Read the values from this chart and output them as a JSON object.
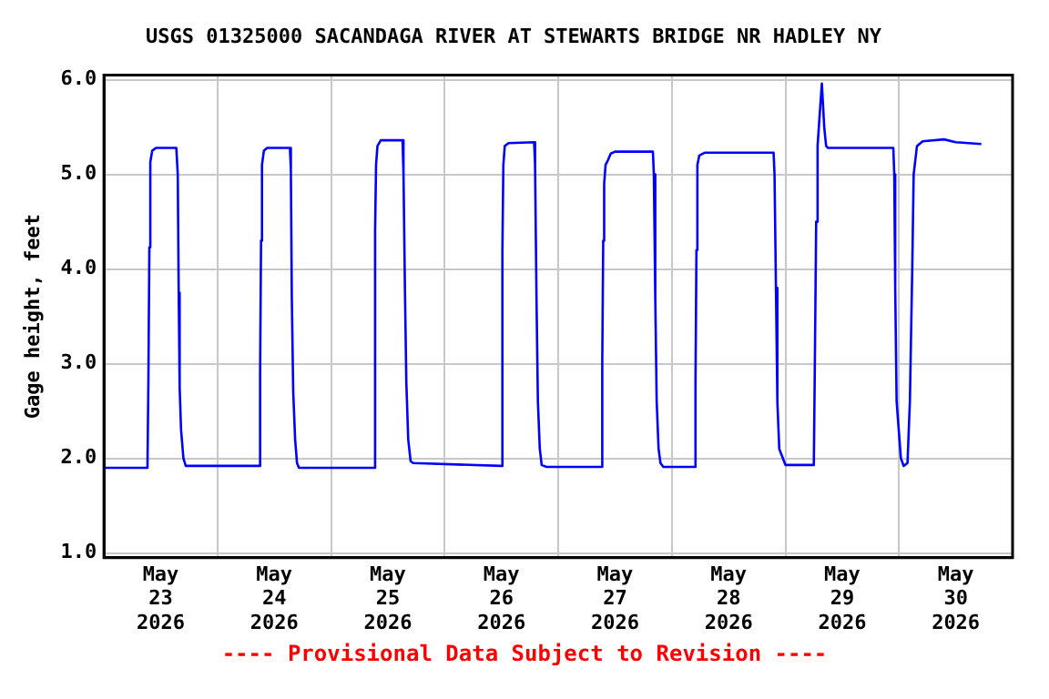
{
  "chart_data": {
    "type": "line",
    "title": "USGS 01325000 SACANDAGA RIVER AT STEWARTS BRIDGE NR HADLEY NY",
    "ylabel": "Gage height, feet",
    "annotations": [
      "---- Provisional Data Subject to Revision ----"
    ],
    "grid": true,
    "legend": false,
    "marker": "none",
    "line_style": "solid",
    "xlim": [
      "2026-05-23T00:00",
      "2026-05-31T00:00"
    ],
    "xticks": [
      {
        "value": "2026-05-23T00:00",
        "label": null
      },
      {
        "value": "2026-05-23T12:00",
        "label": "May\n23\n2026"
      },
      {
        "value": "2026-05-24T00:00",
        "label": null
      },
      {
        "value": "2026-05-24T12:00",
        "label": "May\n24\n2026"
      },
      {
        "value": "2026-05-25T00:00",
        "label": null
      },
      {
        "value": "2026-05-25T12:00",
        "label": "May\n25\n2026"
      },
      {
        "value": "2026-05-26T00:00",
        "label": null
      },
      {
        "value": "2026-05-26T12:00",
        "label": "May\n26\n2026"
      },
      {
        "value": "2026-05-27T00:00",
        "label": null
      },
      {
        "value": "2026-05-27T12:00",
        "label": "May\n27\n2026"
      },
      {
        "value": "2026-05-28T00:00",
        "label": null
      },
      {
        "value": "2026-05-28T12:00",
        "label": "May\n28\n2026"
      },
      {
        "value": "2026-05-29T00:00",
        "label": null
      },
      {
        "value": "2026-05-29T12:00",
        "label": "May\n29\n2026"
      },
      {
        "value": "2026-05-30T00:00",
        "label": null
      },
      {
        "value": "2026-05-30T12:00",
        "label": "May\n30\n2026"
      },
      {
        "value": "2026-05-31T00:00",
        "label": null
      }
    ],
    "ylim": [
      0.95,
      6.05
    ],
    "yticks": [
      {
        "value": 1,
        "label": "1.0"
      },
      {
        "value": 2,
        "label": "2.0"
      },
      {
        "value": 3,
        "label": "3.0"
      },
      {
        "value": 4,
        "label": "4.0"
      },
      {
        "value": 5,
        "label": "5.0"
      },
      {
        "value": 6,
        "label": "6.0"
      }
    ],
    "series": [
      {
        "color": "#0000ff",
        "x": [
          "2026-05-23T00:00",
          "2026-05-23T09:12",
          "2026-05-23T09:24",
          "2026-05-23T09:36",
          "2026-05-23T09:48",
          "2026-05-23T10:12",
          "2026-05-23T11:00",
          "2026-05-23T15:18",
          "2026-05-23T15:36",
          "2026-05-23T15:48",
          "2026-05-23T16:00",
          "2026-05-23T16:18",
          "2026-05-23T16:48",
          "2026-05-23T17:18",
          "2026-05-24T08:54",
          "2026-05-24T09:00",
          "2026-05-24T09:12",
          "2026-05-24T09:24",
          "2026-05-24T09:48",
          "2026-05-24T10:30",
          "2026-05-24T15:18",
          "2026-05-24T15:30",
          "2026-05-24T15:42",
          "2026-05-24T16:00",
          "2026-05-24T16:24",
          "2026-05-24T16:48",
          "2026-05-24T17:12",
          "2026-05-25T09:00",
          "2026-05-25T09:18",
          "2026-05-25T09:30",
          "2026-05-25T09:48",
          "2026-05-25T10:30",
          "2026-05-25T15:06",
          "2026-05-25T15:18",
          "2026-05-25T15:36",
          "2026-05-25T15:54",
          "2026-05-25T16:18",
          "2026-05-25T16:48",
          "2026-05-25T17:24",
          "2026-05-26T11:54",
          "2026-05-26T12:12",
          "2026-05-26T12:24",
          "2026-05-26T12:42",
          "2026-05-26T13:30",
          "2026-05-26T18:54",
          "2026-05-26T19:06",
          "2026-05-26T19:24",
          "2026-05-26T19:42",
          "2026-05-26T20:06",
          "2026-05-26T20:30",
          "2026-05-26T21:30",
          "2026-05-27T09:12",
          "2026-05-27T09:18",
          "2026-05-27T09:30",
          "2026-05-27T09:42",
          "2026-05-27T10:00",
          "2026-05-27T10:30",
          "2026-05-27T11:06",
          "2026-05-27T12:00",
          "2026-05-27T20:00",
          "2026-05-27T20:12",
          "2026-05-27T20:30",
          "2026-05-27T20:48",
          "2026-05-27T21:12",
          "2026-05-27T21:36",
          "2026-05-27T22:12",
          "2026-05-28T04:54",
          "2026-05-28T05:00",
          "2026-05-28T05:12",
          "2026-05-28T05:24",
          "2026-05-28T05:48",
          "2026-05-28T07:00",
          "2026-05-28T21:30",
          "2026-05-28T21:42",
          "2026-05-28T22:00",
          "2026-05-28T22:18",
          "2026-05-28T22:42",
          "2026-05-29T00:00",
          "2026-05-29T06:00",
          "2026-05-29T06:12",
          "2026-05-29T06:30",
          "2026-05-29T06:48",
          "2026-05-29T07:12",
          "2026-05-29T07:42",
          "2026-05-29T08:12",
          "2026-05-29T08:36",
          "2026-05-29T09:00",
          "2026-05-29T22:48",
          "2026-05-29T23:00",
          "2026-05-29T23:12",
          "2026-05-29T23:30",
          "2026-05-30T00:24",
          "2026-05-30T01:00",
          "2026-05-30T01:48",
          "2026-05-30T02:18",
          "2026-05-30T02:48",
          "2026-05-30T03:06",
          "2026-05-30T03:48",
          "2026-05-30T05:00",
          "2026-05-30T09:30",
          "2026-05-30T12:00",
          "2026-05-30T17:24"
        ],
        "values": [
          1.9,
          1.9,
          2.85,
          4.23,
          5.13,
          5.25,
          5.28,
          5.28,
          5.0,
          3.75,
          2.75,
          2.3,
          2.0,
          1.92,
          1.92,
          2.9,
          4.3,
          5.1,
          5.25,
          5.28,
          5.28,
          5.05,
          3.7,
          2.7,
          2.2,
          1.95,
          1.9,
          1.9,
          4.4,
          5.1,
          5.3,
          5.36,
          5.36,
          5.0,
          3.8,
          2.8,
          2.2,
          1.97,
          1.95,
          1.92,
          4.2,
          5.1,
          5.3,
          5.33,
          5.34,
          5.1,
          3.7,
          2.6,
          2.1,
          1.93,
          1.91,
          1.91,
          3.0,
          4.3,
          4.9,
          5.1,
          5.15,
          5.22,
          5.24,
          5.24,
          5.0,
          3.7,
          2.6,
          2.1,
          1.95,
          1.91,
          1.91,
          2.8,
          4.2,
          5.1,
          5.2,
          5.23,
          5.23,
          5.0,
          3.8,
          2.6,
          2.1,
          1.93,
          1.93,
          2.9,
          4.5,
          5.3,
          5.6,
          5.96,
          5.5,
          5.3,
          5.28,
          5.28,
          5.0,
          3.8,
          2.6,
          2.0,
          1.92,
          1.95,
          2.6,
          4.0,
          5.0,
          5.3,
          5.35,
          5.37,
          5.34,
          5.32
        ]
      }
    ]
  }
}
